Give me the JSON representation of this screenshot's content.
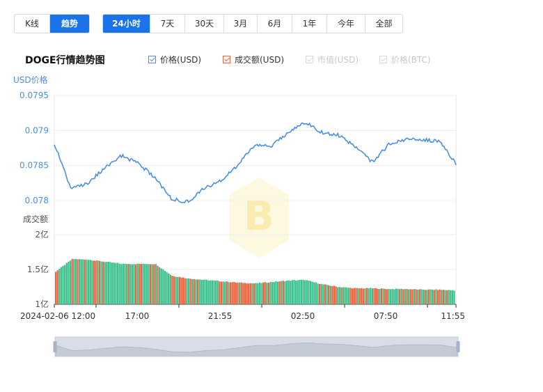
{
  "controls": {
    "view_tabs": [
      {
        "label": "K线",
        "active": false
      },
      {
        "label": "趋势",
        "active": true
      }
    ],
    "range_tabs": [
      {
        "label": "24小时",
        "active": true
      },
      {
        "label": "7天",
        "active": false
      },
      {
        "label": "30天",
        "active": false
      },
      {
        "label": "3月",
        "active": false
      },
      {
        "label": "6月",
        "active": false
      },
      {
        "label": "1年",
        "active": false
      },
      {
        "label": "今年",
        "active": false
      },
      {
        "label": "全部",
        "active": false
      }
    ]
  },
  "chart_title": "DOGE行情趋势图",
  "legend": [
    {
      "label": "价格(USD)",
      "checked": true,
      "enabled": true,
      "color": "#4a90e2"
    },
    {
      "label": "成交额(USD)",
      "checked": true,
      "enabled": true,
      "color": "#f0623c"
    },
    {
      "label": "市值(USD)",
      "checked": true,
      "enabled": false,
      "color": "#cccccc"
    },
    {
      "label": "价格(BTC)",
      "checked": true,
      "enabled": false,
      "color": "#cccccc"
    }
  ],
  "chart_data": {
    "type": "line",
    "price_axis": {
      "label": "USD价格",
      "ylim": [
        0.0775,
        0.0795
      ],
      "ticks": [
        "0.0795",
        "0.079",
        "0.0785",
        "0.078"
      ]
    },
    "volume_axis": {
      "label": "成交额",
      "ylim": [
        1,
        2
      ],
      "ticks": [
        "2亿",
        "1.5亿",
        "1亿"
      ]
    },
    "x_tick_labels": [
      "2024-02-06 12:00",
      "17:00",
      "21:55",
      "02:50",
      "07:50",
      "11:55"
    ],
    "x": [
      "2024-02-06 12:00",
      "2024-02-06 13:00",
      "2024-02-06 14:00",
      "2024-02-06 15:00",
      "2024-02-06 16:00",
      "2024-02-06 17:00",
      "2024-02-06 18:00",
      "2024-02-06 19:00",
      "2024-02-06 20:00",
      "2024-02-06 21:00",
      "2024-02-06 22:00",
      "2024-02-06 23:00",
      "2024-02-07 00:00",
      "2024-02-07 01:00",
      "2024-02-07 02:00",
      "2024-02-07 03:00",
      "2024-02-07 04:00",
      "2024-02-07 05:00",
      "2024-02-07 06:00",
      "2024-02-07 07:00",
      "2024-02-07 08:00",
      "2024-02-07 09:00",
      "2024-02-07 10:00",
      "2024-02-07 11:00",
      "2024-02-07 11:55"
    ],
    "series": [
      {
        "name": "价格(USD)",
        "color": "#4a90e2",
        "values": [
          0.07882,
          0.07816,
          0.07825,
          0.07846,
          0.07864,
          0.07853,
          0.07833,
          0.07802,
          0.07798,
          0.07818,
          0.07828,
          0.07852,
          0.0788,
          0.07878,
          0.07898,
          0.07912,
          0.07897,
          0.07893,
          0.07877,
          0.07855,
          0.0788,
          0.07887,
          0.07887,
          0.07884,
          0.07853
        ]
      },
      {
        "name": "成交额(USD)",
        "color": "#f0623c",
        "values": [
          1.47,
          1.65,
          1.64,
          1.61,
          1.58,
          1.58,
          1.58,
          1.41,
          1.37,
          1.35,
          1.33,
          1.31,
          1.3,
          1.32,
          1.34,
          1.35,
          1.29,
          1.25,
          1.23,
          1.23,
          1.22,
          1.22,
          1.21,
          1.21,
          1.2
        ]
      }
    ]
  }
}
